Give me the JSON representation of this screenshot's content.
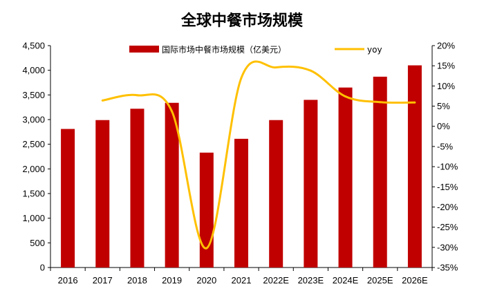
{
  "chart_data": {
    "type": "bar",
    "title": "全球中餐市场规模",
    "categories": [
      "2016",
      "2017",
      "2018",
      "2019",
      "2020",
      "2021",
      "2022E",
      "2023E",
      "2024E",
      "2025E",
      "2026E"
    ],
    "series": [
      {
        "name": "国际市场中餐市场规模（亿美元）",
        "type": "bar",
        "axis": "left",
        "color": "#C00000",
        "values": [
          2810,
          2990,
          3220,
          3340,
          2330,
          2610,
          2990,
          3400,
          3650,
          3870,
          4100
        ]
      },
      {
        "name": "yoy",
        "type": "line",
        "axis": "right",
        "color": "#FFC000",
        "values": [
          null,
          6.4,
          7.7,
          3.7,
          -30.2,
          12.0,
          14.6,
          13.8,
          7.4,
          6.0,
          5.9
        ]
      }
    ],
    "ylim": [
      0,
      4500
    ],
    "y_ticks": [
      "0",
      "500",
      "1,000",
      "1,500",
      "2,000",
      "2,500",
      "3,000",
      "3,500",
      "4,000",
      "4,500"
    ],
    "y2lim": [
      -35,
      20
    ],
    "y2_ticks": [
      "-35%",
      "-30%",
      "-25%",
      "-20%",
      "-15%",
      "-10%",
      "-5%",
      "0%",
      "5%",
      "10%",
      "15%",
      "20%"
    ],
    "legend_position": "top",
    "grid": false
  }
}
